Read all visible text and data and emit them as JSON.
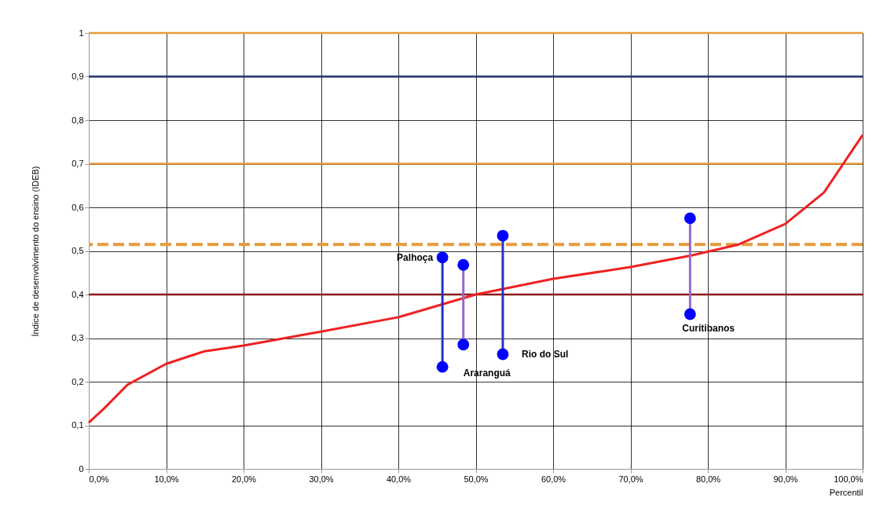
{
  "chart_data": {
    "type": "line",
    "xlabel": "Percentil",
    "ylabel": "Índice de desenvolvimento do ensino (IDEB)",
    "xlim": [
      0,
      100
    ],
    "xticks": [
      {
        "value": 0,
        "label": "0,0%"
      },
      {
        "value": 10,
        "label": "10,0%"
      },
      {
        "value": 20,
        "label": "20,0%"
      },
      {
        "value": 30,
        "label": "30,0%"
      },
      {
        "value": 40,
        "label": "40,0%"
      },
      {
        "value": 50,
        "label": "50,0%"
      },
      {
        "value": 60,
        "label": "60,0%"
      },
      {
        "value": 70,
        "label": "70,0%"
      },
      {
        "value": 80,
        "label": "80,0%"
      },
      {
        "value": 90,
        "label": "90,0%"
      },
      {
        "value": 100,
        "label": "100,0%"
      }
    ],
    "ylim": [
      0,
      1
    ],
    "yticks": [
      0,
      {
        "value": 0.1,
        "label": "0,1"
      },
      {
        "value": 0.2,
        "label": "0,2"
      },
      {
        "value": 0.3,
        "label": "0,3"
      },
      {
        "value": 0.4,
        "label": "0,4"
      },
      {
        "value": 0.5,
        "label": "0,5"
      },
      {
        "value": 0.6,
        "label": "0,6"
      },
      {
        "value": 0.7,
        "label": "0,7"
      },
      {
        "value": 0.8,
        "label": "0,8"
      },
      {
        "value": 0.9,
        "label": "0,9"
      },
      1
    ],
    "grid": true,
    "series": [
      {
        "color": "#ee2222",
        "marker": "none",
        "x": [
          0,
          2,
          5,
          10,
          15,
          20,
          30,
          40,
          50,
          60,
          70,
          78,
          84,
          90,
          95,
          100
        ],
        "values": [
          0.106,
          0.139,
          0.193,
          0.241,
          0.27,
          0.283,
          0.315,
          0.348,
          0.4,
          0.436,
          0.463,
          0.49,
          0.515,
          0.562,
          0.634,
          0.766
        ]
      },
      {
        "color": "#2233cc",
        "marker": "circle",
        "x": [
          45.7,
          45.7
        ],
        "values": [
          0.485,
          0.234
        ]
      },
      {
        "color": "#9966cc",
        "marker": "circle",
        "x": [
          48.4,
          48.4
        ],
        "values": [
          0.468,
          0.285
        ]
      },
      {
        "color": "#2233cc",
        "marker": "circle",
        "x": [
          53.5,
          53.5
        ],
        "values": [
          0.535,
          0.263
        ]
      },
      {
        "color": "#9966cc",
        "marker": "circle",
        "x": [
          77.7,
          77.7
        ],
        "values": [
          0.575,
          0.355
        ]
      }
    ],
    "ref_lines": [
      {
        "axis": "y",
        "value": 1,
        "color": "#e69a3c"
      },
      {
        "axis": "y",
        "value": 0.9,
        "color": "#1f2f6f"
      },
      {
        "axis": "y",
        "value": 0.7,
        "color": "#e69a3c"
      },
      {
        "axis": "y",
        "value": 0.4,
        "color": "#8b1a1a"
      },
      {
        "axis": "y",
        "value": 0.515,
        "color": "#e69a3c",
        "line_style": "dashed"
      }
    ],
    "annotations": [
      {
        "text": "Palhoça",
        "x": 45.7,
        "y": 0.485
      },
      {
        "text": "Araranguá",
        "x": 48.4,
        "y": 0.285
      },
      {
        "text": "Rio do Sul",
        "x": 53.5,
        "y": 0.263
      },
      {
        "text": "Curitibanos",
        "x": 77.7,
        "y": 0.355
      }
    ]
  }
}
